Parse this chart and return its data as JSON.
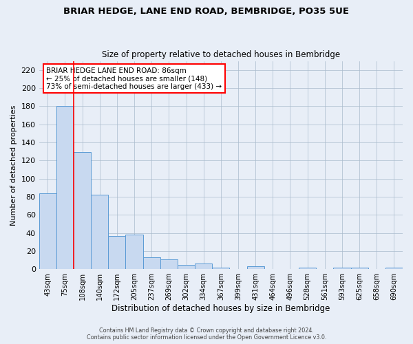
{
  "title": "BRIAR HEDGE, LANE END ROAD, BEMBRIDGE, PO35 5UE",
  "subtitle": "Size of property relative to detached houses in Bembridge",
  "xlabel": "Distribution of detached houses by size in Bembridge",
  "ylabel": "Number of detached properties",
  "bin_labels": [
    "43sqm",
    "75sqm",
    "108sqm",
    "140sqm",
    "172sqm",
    "205sqm",
    "237sqm",
    "269sqm",
    "302sqm",
    "334sqm",
    "367sqm",
    "399sqm",
    "431sqm",
    "464sqm",
    "496sqm",
    "528sqm",
    "561sqm",
    "593sqm",
    "625sqm",
    "658sqm",
    "690sqm"
  ],
  "bar_values": [
    84,
    180,
    129,
    82,
    37,
    38,
    13,
    11,
    5,
    6,
    2,
    0,
    3,
    0,
    0,
    2,
    0,
    2,
    2,
    0,
    2
  ],
  "bar_color": "#c8d9f0",
  "bar_edge_color": "#5b9bd5",
  "red_line_x": 1.5,
  "annotation_title": "BRIAR HEDGE LANE END ROAD: 86sqm",
  "annotation_line1": "← 25% of detached houses are smaller (148)",
  "annotation_line2": "73% of semi-detached houses are larger (433) →",
  "ylim": [
    0,
    230
  ],
  "yticks": [
    0,
    20,
    40,
    60,
    80,
    100,
    120,
    140,
    160,
    180,
    200,
    220
  ],
  "footer1": "Contains HM Land Registry data © Crown copyright and database right 2024.",
  "footer2": "Contains public sector information licensed under the Open Government Licence v3.0.",
  "bg_color": "#e8eef7",
  "plot_bg_color": "#e8eef7"
}
